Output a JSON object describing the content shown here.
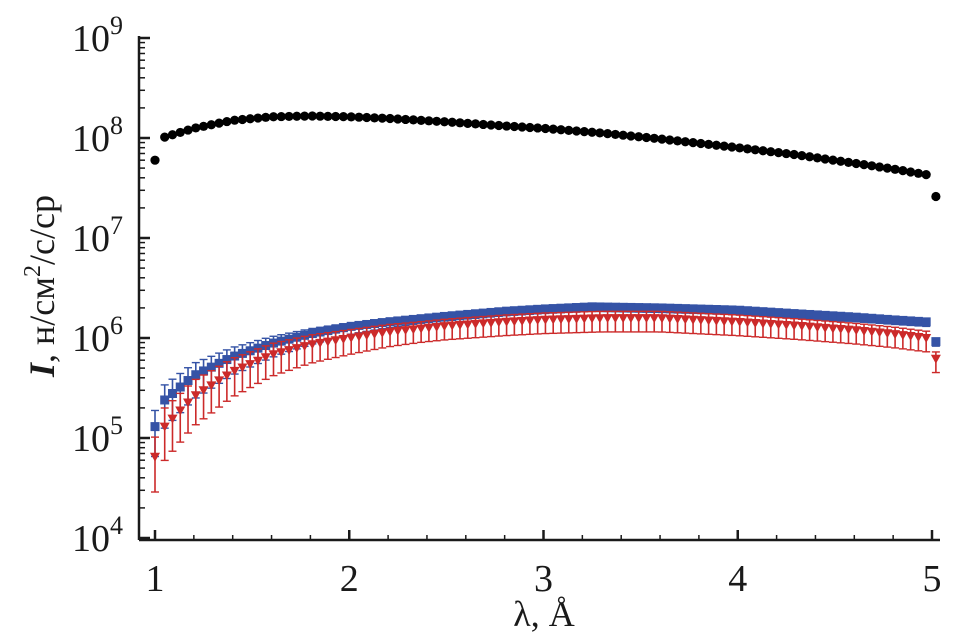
{
  "chart_data": {
    "type": "scatter",
    "xlabel": "λ, Å",
    "ylabel": {
      "var": "I",
      "prefix": ", н/см",
      "sup": "2",
      "suffix": "/c/ср"
    },
    "xlim": [
      0.95,
      5.05
    ],
    "ylim": [
      10000,
      1000000000
    ],
    "yscale": "log",
    "x_ticks": [
      "1",
      "2",
      "3",
      "4",
      "5"
    ],
    "y_ticks": [
      {
        "base": "10",
        "exp": "4"
      },
      {
        "base": "10",
        "exp": "5"
      },
      {
        "base": "10",
        "exp": "6"
      },
      {
        "base": "10",
        "exp": "7"
      },
      {
        "base": "10",
        "exp": "8"
      },
      {
        "base": "10",
        "exp": "9"
      }
    ],
    "grid": false,
    "series": [
      {
        "marker": "circle",
        "color": "#000000",
        "points": [
          [
            1.0,
            60000000.0
          ],
          [
            1.05,
            102000000.0
          ],
          [
            1.2,
            125000000.0
          ],
          [
            1.4,
            150000000.0
          ],
          [
            1.6,
            163000000.0
          ],
          [
            1.8,
            166000000.0
          ],
          [
            2.0,
            163000000.0
          ],
          [
            2.2,
            157000000.0
          ],
          [
            2.5,
            145000000.0
          ],
          [
            2.8,
            132000000.0
          ],
          [
            3.0,
            125000000.0
          ],
          [
            3.3,
            112000000.0
          ],
          [
            3.6,
            98000000.0
          ],
          [
            4.0,
            80000000.0
          ],
          [
            4.3,
            68000000.0
          ],
          [
            4.6,
            56000000.0
          ],
          [
            4.8,
            49000000.0
          ],
          [
            4.97,
            43000000.0
          ],
          [
            5.02,
            26000000.0
          ]
        ]
      },
      {
        "marker": "square",
        "color": "#3553a6",
        "points": [
          [
            1.0,
            130000.0
          ],
          [
            1.05,
            240000.0
          ],
          [
            1.2,
            420000.0
          ],
          [
            1.4,
            650000.0
          ],
          [
            1.6,
            880000.0
          ],
          [
            1.8,
            1100000.0
          ],
          [
            2.0,
            1300000.0
          ],
          [
            2.2,
            1450000.0
          ],
          [
            2.5,
            1650000.0
          ],
          [
            2.8,
            1850000.0
          ],
          [
            3.0,
            1950000.0
          ],
          [
            3.25,
            2050000.0
          ],
          [
            3.6,
            2000000.0
          ],
          [
            4.0,
            1900000.0
          ],
          [
            4.3,
            1750000.0
          ],
          [
            4.6,
            1620000.0
          ],
          [
            4.8,
            1520000.0
          ],
          [
            4.97,
            1450000.0
          ],
          [
            5.02,
            920000.0
          ]
        ]
      },
      {
        "marker": "triangle-down",
        "color": "#cc2a2a",
        "points": [
          [
            1.0,
            65000.0
          ],
          [
            1.05,
            130000.0
          ],
          [
            1.2,
            260000.0
          ],
          [
            1.4,
            460000.0
          ],
          [
            1.6,
            680000.0
          ],
          [
            1.8,
            860000.0
          ],
          [
            2.0,
            1000000.0
          ],
          [
            2.2,
            1150000.0
          ],
          [
            2.5,
            1320000.0
          ],
          [
            2.8,
            1450000.0
          ],
          [
            3.0,
            1520000.0
          ],
          [
            3.3,
            1580000.0
          ],
          [
            3.6,
            1580000.0
          ],
          [
            4.0,
            1450000.0
          ],
          [
            4.3,
            1330000.0
          ],
          [
            4.6,
            1200000.0
          ],
          [
            4.8,
            1100000.0
          ],
          [
            4.97,
            1000000.0
          ],
          [
            5.02,
            620000.0
          ]
        ]
      }
    ]
  }
}
